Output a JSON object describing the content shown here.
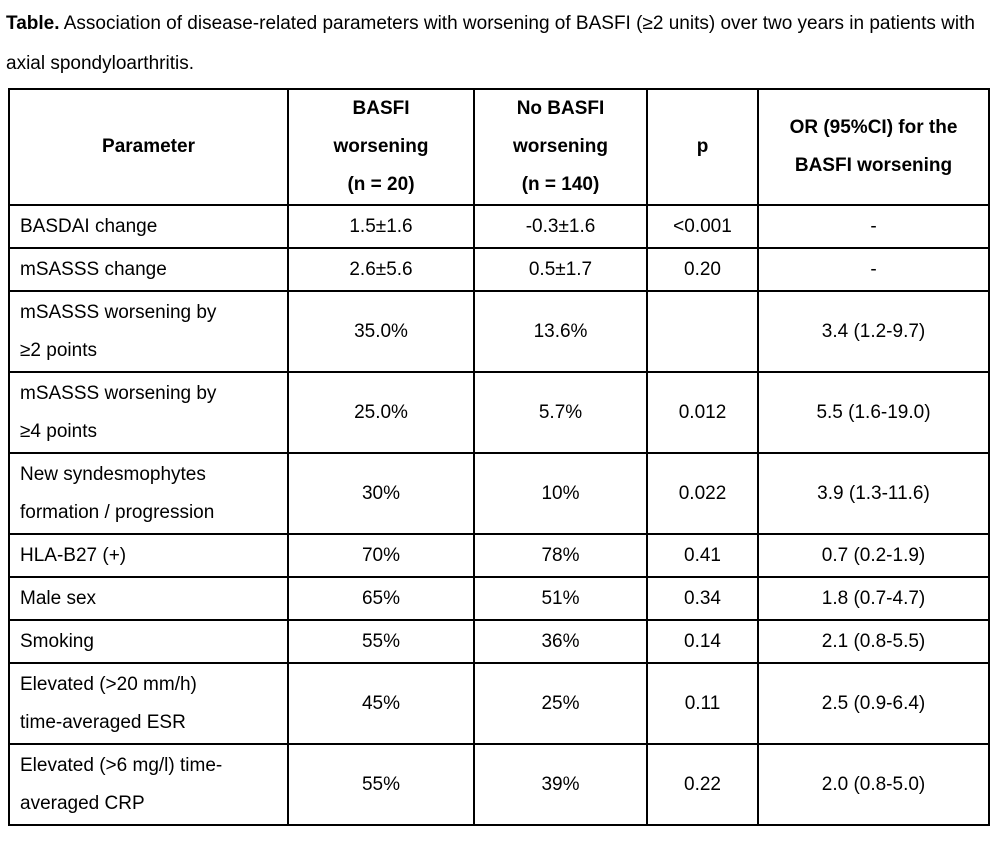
{
  "caption": {
    "label": "Table.",
    "text": " Association of disease-related parameters with worsening of BASFI (≥2 units) over two years in patients with axial spondyloarthritis."
  },
  "table": {
    "headers": {
      "parameter": "Parameter",
      "basfi_worsening": "BASFI\nworsening\n(n = 20)",
      "no_basfi_worsening": "No BASFI\nworsening\n(n = 140)",
      "p": "p",
      "or_ci": "OR (95%CI) for the\nBASFI worsening"
    },
    "rows": [
      {
        "parameter": "BASDAI change",
        "basfi_worsening": "1.5±1.6",
        "no_basfi_worsening": "-0.3±1.6",
        "p": "<0.001",
        "or_ci": "-"
      },
      {
        "parameter": "mSASSS change",
        "basfi_worsening": "2.6±5.6",
        "no_basfi_worsening": "0.5±1.7",
        "p": "0.20",
        "or_ci": "-"
      },
      {
        "parameter": "mSASSS worsening by\n≥2 points",
        "basfi_worsening": "35.0%",
        "no_basfi_worsening": "13.6%",
        "p": "",
        "or_ci": "3.4 (1.2-9.7)"
      },
      {
        "parameter": "mSASSS worsening by\n≥4 points",
        "basfi_worsening": "25.0%",
        "no_basfi_worsening": "5.7%",
        "p": "0.012",
        "or_ci": "5.5 (1.6-19.0)"
      },
      {
        "parameter": "New syndesmophytes\nformation / progression",
        "basfi_worsening": "30%",
        "no_basfi_worsening": "10%",
        "p": "0.022",
        "or_ci": "3.9 (1.3-11.6)"
      },
      {
        "parameter": "HLA-B27 (+)",
        "basfi_worsening": "70%",
        "no_basfi_worsening": "78%",
        "p": "0.41",
        "or_ci": "0.7 (0.2-1.9)"
      },
      {
        "parameter": "Male sex",
        "basfi_worsening": "65%",
        "no_basfi_worsening": "51%",
        "p": "0.34",
        "or_ci": "1.8 (0.7-4.7)"
      },
      {
        "parameter": "Smoking",
        "basfi_worsening": "55%",
        "no_basfi_worsening": "36%",
        "p": "0.14",
        "or_ci": "2.1 (0.8-5.5)"
      },
      {
        "parameter": "Elevated (>20 mm/h)\ntime-averaged ESR",
        "basfi_worsening": "45%",
        "no_basfi_worsening": "25%",
        "p": "0.11",
        "or_ci": "2.5 (0.9-6.4)"
      },
      {
        "parameter": "Elevated (>6 mg/l) time-\naveraged CRP",
        "basfi_worsening": "55%",
        "no_basfi_worsening": "39%",
        "p": "0.22",
        "or_ci": "2.0 (0.8-5.0)"
      }
    ]
  }
}
